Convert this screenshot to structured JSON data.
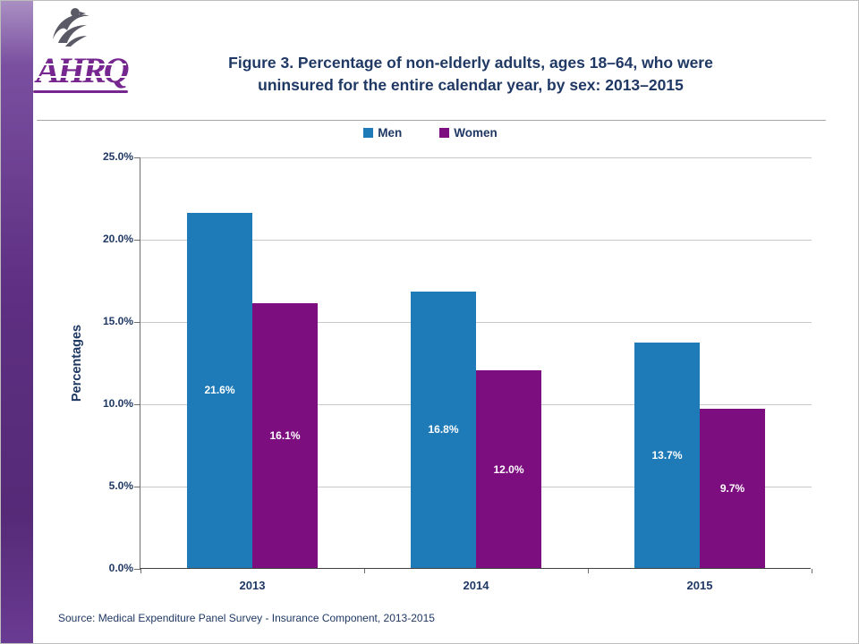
{
  "header": {
    "logo_text": "AHRQ",
    "title_line1": "Figure 3. Percentage of non-elderly adults, ages 18–64, who were",
    "title_line2": "uninsured for the entire calendar year, by sex: 2013–2015"
  },
  "footer": {
    "source": "Source:  Medical Expenditure Panel Survey  - Insurance Component, 2013-2015"
  },
  "colors": {
    "men_bar": "#1F7BB8",
    "women_bar": "#7D0E80",
    "title_text": "#1F3864",
    "axis_text": "#1F3864",
    "gridline": "#C9C9C9",
    "sidebar_purple": "#5E2F82",
    "value_label_text": "#FFFFFF"
  },
  "chart_data": {
    "type": "bar",
    "title": "Figure 3. Percentage of non-elderly adults, ages 18–64, who were uninsured for the entire calendar year, by sex: 2013–2015",
    "categories": [
      "2013",
      "2014",
      "2015"
    ],
    "series": [
      {
        "name": "Men",
        "color": "#1F7BB8",
        "values": [
          21.6,
          16.8,
          13.7
        ],
        "labels": [
          "21.6%",
          "16.8%",
          "13.7%"
        ]
      },
      {
        "name": "Women",
        "color": "#7D0E80",
        "values": [
          16.1,
          12.0,
          9.7
        ],
        "labels": [
          "16.1%",
          "12.0%",
          "9.7%"
        ]
      }
    ],
    "xlabel": "",
    "ylabel": "Percentages",
    "ylim": [
      0,
      25
    ],
    "yticks": [
      "0.0%",
      "5.0%",
      "10.0%",
      "15.0%",
      "20.0%",
      "25.0%"
    ],
    "grid": true,
    "legend_position": "top-center",
    "value_labels_inside_bars": true
  }
}
